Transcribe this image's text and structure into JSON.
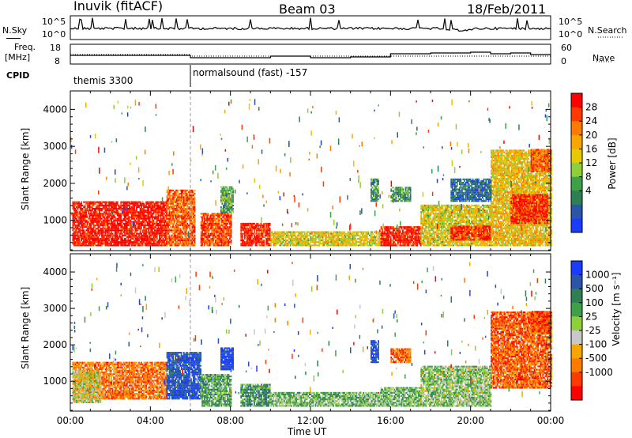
{
  "header": {
    "station": "Inuvik (fitACF)",
    "beam": "Beam 03",
    "date": "18/Feb/2011"
  },
  "panels": {
    "nsky": {
      "left_label": "N.Sky",
      "right_label": "N.Search",
      "left_ticks": [
        "10^5",
        "10^0"
      ],
      "right_ticks": [
        "10^5",
        "10^0"
      ]
    },
    "freq": {
      "left_label_line1": "Freq.",
      "left_label_line2": "[MHz]",
      "left_ticks": [
        "18",
        "8"
      ],
      "right_label": "Nave",
      "right_ticks": [
        "60",
        "0"
      ]
    },
    "cpid": {
      "label": "CPID",
      "segments": [
        {
          "text": "themis 3300",
          "start_hour": 0,
          "end_hour": 6
        },
        {
          "text": "normalsound (fast) -157",
          "start_hour": 6,
          "end_hour": 24
        }
      ]
    }
  },
  "chart_data": [
    {
      "type": "heatmap",
      "title": "Power",
      "ylabel": "Slant Range [km]",
      "xlabel": "",
      "x_range_hours": [
        0,
        24
      ],
      "ylim": [
        180,
        4500
      ],
      "yticks": [
        1000,
        2000,
        3000,
        4000
      ],
      "colorbar": {
        "label": "Power [dB]",
        "ticks": [
          "28",
          "24",
          "20",
          "16",
          "12",
          "8",
          "4"
        ],
        "colors": [
          "#ff0000",
          "#ff3a00",
          "#ff7a00",
          "#f7a600",
          "#e8c800",
          "#8fcf3a",
          "#3fa04a",
          "#2f7f55",
          "#2a55a8",
          "#1a3cff"
        ]
      },
      "regions": [
        {
          "t0": 0.1,
          "t1": 4.8,
          "r0": 300,
          "r1": 1500,
          "level": 0.95
        },
        {
          "t0": 4.8,
          "t1": 6.2,
          "r0": 300,
          "r1": 1800,
          "level": 0.8
        },
        {
          "t0": 6.5,
          "t1": 8.0,
          "r0": 300,
          "r1": 1200,
          "level": 0.85
        },
        {
          "t0": 7.5,
          "t1": 8.1,
          "r0": 1200,
          "r1": 1900,
          "level": 0.35
        },
        {
          "t0": 8.5,
          "t1": 10.0,
          "r0": 300,
          "r1": 900,
          "level": 0.9
        },
        {
          "t0": 10.0,
          "t1": 15.5,
          "r0": 300,
          "r1": 700,
          "level": 0.55
        },
        {
          "t0": 15.5,
          "t1": 17.5,
          "r0": 300,
          "r1": 800,
          "level": 0.92
        },
        {
          "t0": 17.5,
          "t1": 21.0,
          "r0": 300,
          "r1": 1400,
          "level": 0.55
        },
        {
          "t0": 19.0,
          "t1": 21.0,
          "r0": 450,
          "r1": 850,
          "level": 0.9
        },
        {
          "t0": 21.0,
          "t1": 24.0,
          "r0": 300,
          "r1": 2900,
          "level": 0.6
        },
        {
          "t0": 22.0,
          "t1": 23.8,
          "r0": 900,
          "r1": 1700,
          "level": 0.9
        },
        {
          "t0": 23.0,
          "t1": 24.0,
          "r0": 2300,
          "r1": 2900,
          "level": 0.8
        },
        {
          "t0": 15.0,
          "t1": 15.4,
          "r0": 1500,
          "r1": 2100,
          "level": 0.3
        },
        {
          "t0": 16.0,
          "t1": 17.0,
          "r0": 1500,
          "r1": 1900,
          "level": 0.3
        },
        {
          "t0": 19.0,
          "t1": 21.0,
          "r0": 1500,
          "r1": 2100,
          "level": 0.2
        }
      ]
    },
    {
      "type": "heatmap",
      "title": "Velocity",
      "ylabel": "Slant Range [km]",
      "xlabel": "Time UT",
      "x_range_hours": [
        0,
        24
      ],
      "ylim": [
        180,
        4500
      ],
      "yticks": [
        1000,
        2000,
        3000,
        4000
      ],
      "xticks": [
        "00:00",
        "04:00",
        "08:00",
        "12:00",
        "16:00",
        "20:00",
        "00:00"
      ],
      "colorbar": {
        "label": "Velocity [m s⁻¹]",
        "ticks": [
          "1000",
          "500",
          "100",
          "25",
          "-25",
          "-100",
          "-500",
          "-1000"
        ],
        "colors": [
          "#1a3cff",
          "#2a55a8",
          "#2f7f55",
          "#3fa04a",
          "#8fcf3a",
          "#c8c8c8",
          "#f7a600",
          "#ff7a00",
          "#ff3a00",
          "#ff0000"
        ]
      },
      "regions": [
        {
          "t0": 0.1,
          "t1": 4.8,
          "r0": 500,
          "r1": 1500,
          "level": 0.25
        },
        {
          "t0": 0.1,
          "t1": 1.5,
          "r0": 400,
          "r1": 1300,
          "level": 0.45
        },
        {
          "t0": 4.8,
          "t1": 6.5,
          "r0": 500,
          "r1": 1800,
          "level": 0.9
        },
        {
          "t0": 6.5,
          "t1": 8.0,
          "r0": 300,
          "r1": 1200,
          "level": 0.65
        },
        {
          "t0": 7.5,
          "t1": 8.1,
          "r0": 1300,
          "r1": 1900,
          "level": 0.95
        },
        {
          "t0": 8.5,
          "t1": 10.0,
          "r0": 300,
          "r1": 900,
          "level": 0.7
        },
        {
          "t0": 10.0,
          "t1": 15.5,
          "r0": 300,
          "r1": 700,
          "level": 0.6
        },
        {
          "t0": 15.5,
          "t1": 17.5,
          "r0": 300,
          "r1": 800,
          "level": 0.6
        },
        {
          "t0": 17.5,
          "t1": 21.0,
          "r0": 300,
          "r1": 1400,
          "level": 0.55
        },
        {
          "t0": 21.0,
          "t1": 24.0,
          "r0": 800,
          "r1": 2900,
          "level": 0.2
        },
        {
          "t0": 23.0,
          "t1": 24.0,
          "r0": 2300,
          "r1": 2900,
          "level": 0.15
        },
        {
          "t0": 15.0,
          "t1": 15.4,
          "r0": 1500,
          "r1": 2100,
          "level": 0.9
        },
        {
          "t0": 16.0,
          "t1": 17.0,
          "r0": 1500,
          "r1": 1900,
          "level": 0.2
        }
      ]
    }
  ]
}
